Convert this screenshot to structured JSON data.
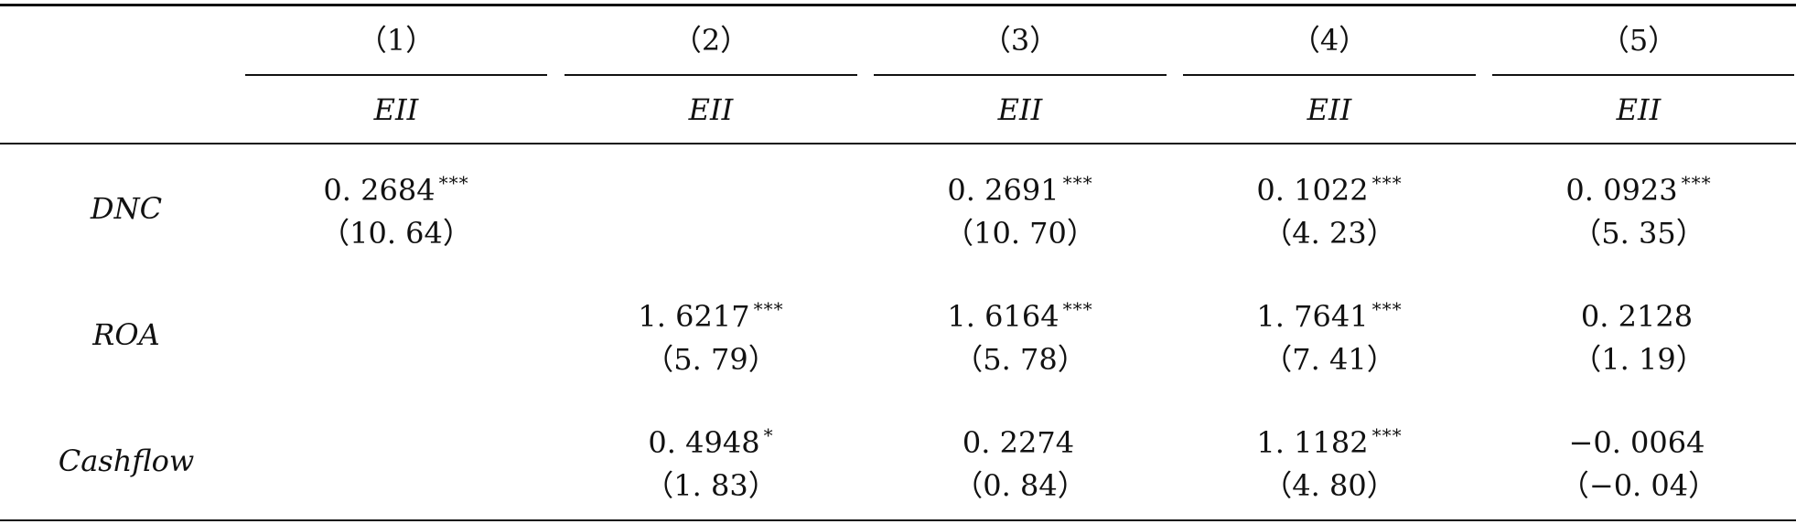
{
  "table": {
    "columns": [
      {
        "number": "（1）",
        "dep_var": "EII"
      },
      {
        "number": "（2）",
        "dep_var": "EII"
      },
      {
        "number": "（3）",
        "dep_var": "EII"
      },
      {
        "number": "（4）",
        "dep_var": "EII"
      },
      {
        "number": "（5）",
        "dep_var": "EII"
      }
    ],
    "rows": [
      {
        "label": "DNC",
        "cells": [
          {
            "coef": "0. 2684",
            "stars": "***",
            "t": "（10. 64）"
          },
          {
            "coef": "",
            "stars": "",
            "t": ""
          },
          {
            "coef": "0. 2691",
            "stars": "***",
            "t": "（10. 70）"
          },
          {
            "coef": "0. 1022",
            "stars": "***",
            "t": "（4. 23）"
          },
          {
            "coef": "0. 0923",
            "stars": "***",
            "t": "（5. 35）"
          }
        ]
      },
      {
        "label": "ROA",
        "cells": [
          {
            "coef": "",
            "stars": "",
            "t": ""
          },
          {
            "coef": "1. 6217",
            "stars": "***",
            "t": "（5. 79）"
          },
          {
            "coef": "1. 6164",
            "stars": "***",
            "t": "（5. 78）"
          },
          {
            "coef": "1. 7641",
            "stars": "***",
            "t": "（7. 41）"
          },
          {
            "coef": "0. 2128",
            "stars": "",
            "t": "（1. 19）"
          }
        ]
      },
      {
        "label": "Cashflow",
        "cells": [
          {
            "coef": "",
            "stars": "",
            "t": ""
          },
          {
            "coef": "0. 4948",
            "stars": "*",
            "t": "（1. 83）"
          },
          {
            "coef": "0. 2274",
            "stars": "",
            "t": "（0. 84）"
          },
          {
            "coef": "1. 1182",
            "stars": "***",
            "t": "（4. 80）"
          },
          {
            "coef": "−0. 0064",
            "stars": "",
            "t": "（−0. 04）"
          }
        ]
      }
    ]
  }
}
